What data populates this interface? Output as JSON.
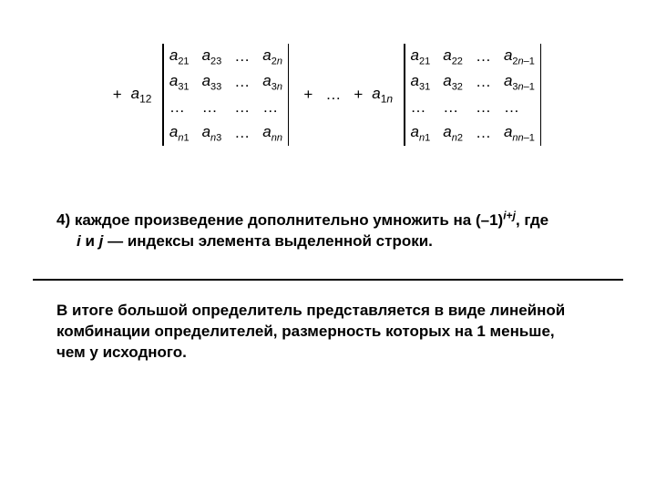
{
  "formula": {
    "plus": "+",
    "ellipsis": "…",
    "coef1": {
      "var": "a",
      "sub": "12"
    },
    "coef2": {
      "var": "a",
      "sub_pre": "1",
      "sub_var": "n"
    },
    "det1": {
      "cols": 4,
      "rows": [
        [
          {
            "v": "a",
            "s": "21"
          },
          {
            "v": "a",
            "s": "23"
          },
          {
            "dots": "…"
          },
          {
            "v": "a",
            "s_pre": "2",
            "s_var": "n"
          }
        ],
        [
          {
            "v": "a",
            "s": "31"
          },
          {
            "v": "a",
            "s": "33"
          },
          {
            "dots": "…"
          },
          {
            "v": "a",
            "s_pre": "3",
            "s_var": "n"
          }
        ],
        [
          {
            "dots": "…"
          },
          {
            "dots": "…"
          },
          {
            "dots": "…"
          },
          {
            "dots": "…"
          }
        ],
        [
          {
            "v": "a",
            "s_var_pre": "n",
            "s": "1"
          },
          {
            "v": "a",
            "s_var_pre": "n",
            "s": "3"
          },
          {
            "dots": "…"
          },
          {
            "v": "a",
            "s_var_pre": "n",
            "s_var": "n"
          }
        ]
      ]
    },
    "det2": {
      "cols": 4,
      "rows": [
        [
          {
            "v": "a",
            "s": "21"
          },
          {
            "v": "a",
            "s": "22"
          },
          {
            "dots": "…"
          },
          {
            "v": "a",
            "s_pre": "2",
            "s_var": "n",
            "s_suf": "–1"
          }
        ],
        [
          {
            "v": "a",
            "s": "31"
          },
          {
            "v": "a",
            "s": "32"
          },
          {
            "dots": "…"
          },
          {
            "v": "a",
            "s_pre": "3",
            "s_var": "n",
            "s_suf": "–1"
          }
        ],
        [
          {
            "dots": "…"
          },
          {
            "dots": "…"
          },
          {
            "dots": "…"
          },
          {
            "dots": "…"
          }
        ],
        [
          {
            "v": "a",
            "s_var_pre": "n",
            "s": "1"
          },
          {
            "v": "a",
            "s_var_pre": "n",
            "s": "2"
          },
          {
            "dots": "…"
          },
          {
            "v": "a",
            "s_var_pre": "n",
            "s_var": "n",
            "s_suf": "–1"
          }
        ]
      ]
    }
  },
  "item4": {
    "num": "4)",
    "t1": "  каждое произведение дополнительно умножить на (–1)",
    "sup1": "i",
    "sup_plus": "+",
    "sup2": "j",
    "t2": ", где",
    "line2_a": "i",
    "line2_mid": " и ",
    "line2_b": "j",
    "line2_end": " — индексы элемента выделенной строки."
  },
  "para2": {
    "text": "В итоге большой определитель представляется в виде линейной комбинации определителей, размерность которых на 1 меньше, чем у исходного."
  },
  "style": {
    "background": "#ffffff",
    "text_color": "#000000",
    "rule_color": "#000000",
    "font_family": "Arial",
    "base_font_size": 17
  }
}
